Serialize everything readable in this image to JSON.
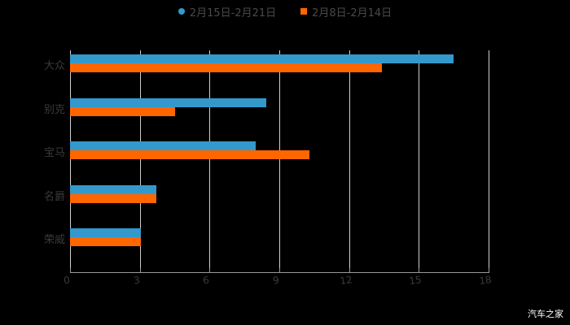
{
  "chart_data": {
    "type": "bar",
    "orientation": "horizontal",
    "title": "",
    "categories": [
      "大众",
      "别克",
      "宝马",
      "名爵",
      "荣威"
    ],
    "series": [
      {
        "name": "2月15日-2月21日",
        "color": "#3399cc",
        "values": [
          16.5,
          8.45,
          8.0,
          3.7,
          3.05
        ]
      },
      {
        "name": "2月8日-2月14日",
        "color": "#ff6600",
        "values": [
          13.4,
          4.5,
          10.3,
          3.7,
          3.05
        ]
      }
    ],
    "xlabel": "",
    "ylabel": "",
    "xlim": [
      0,
      18
    ],
    "xticks": [
      "0",
      "3",
      "6",
      "9",
      "12",
      "15",
      "18"
    ],
    "grid": true,
    "legend_position": "top"
  },
  "legend": {
    "series1_label": "2月15日-2月21日",
    "series2_label": "2月8日-2月14日"
  },
  "watermark": "汽车之家"
}
